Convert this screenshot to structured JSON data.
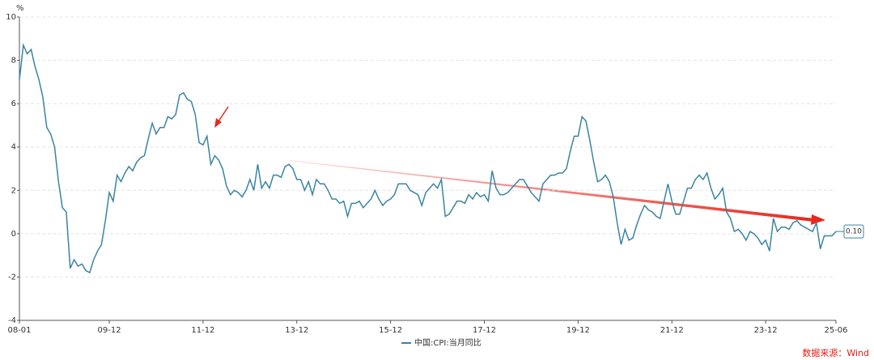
{
  "chart_data": {
    "type": "line",
    "y_unit": "%",
    "categories": [
      "08-01",
      null,
      null,
      null,
      null,
      null,
      null,
      null,
      null,
      null,
      null,
      null,
      null,
      null,
      null,
      null,
      null,
      null,
      null,
      null,
      null,
      null,
      null,
      "09-12",
      null,
      null,
      null,
      null,
      null,
      null,
      null,
      null,
      null,
      null,
      null,
      null,
      null,
      null,
      null,
      null,
      null,
      null,
      null,
      null,
      null,
      null,
      null,
      "11-12",
      null,
      null,
      null,
      null,
      null,
      null,
      null,
      null,
      null,
      null,
      null,
      null,
      null,
      null,
      null,
      null,
      null,
      null,
      null,
      null,
      null,
      null,
      null,
      "13-12",
      null,
      null,
      null,
      null,
      null,
      null,
      null,
      null,
      null,
      null,
      null,
      null,
      null,
      null,
      null,
      null,
      null,
      null,
      null,
      null,
      null,
      null,
      null,
      "15-12",
      null,
      null,
      null,
      null,
      null,
      null,
      null,
      null,
      null,
      null,
      null,
      null,
      null,
      null,
      null,
      null,
      null,
      null,
      null,
      null,
      null,
      null,
      null,
      "17-12",
      null,
      null,
      null,
      null,
      null,
      null,
      null,
      null,
      null,
      null,
      null,
      null,
      null,
      null,
      null,
      null,
      null,
      null,
      null,
      null,
      null,
      null,
      null,
      "19-12",
      null,
      null,
      null,
      null,
      null,
      null,
      null,
      null,
      null,
      null,
      null,
      null,
      null,
      null,
      null,
      null,
      null,
      null,
      null,
      null,
      null,
      null,
      null,
      "21-12",
      null,
      null,
      null,
      null,
      null,
      null,
      null,
      null,
      null,
      null,
      null,
      null,
      null,
      null,
      null,
      null,
      null,
      null,
      null,
      null,
      null,
      null,
      null,
      "23-12",
      null,
      null,
      null,
      null,
      null,
      null,
      null,
      null,
      null,
      null,
      null,
      null,
      null,
      null,
      null,
      null,
      null,
      "25-06"
    ],
    "series": [
      {
        "name": "中国:CPI:当月同比",
        "color": "#3a84a3",
        "values": [
          7.1,
          8.7,
          8.3,
          8.5,
          7.7,
          7.1,
          6.3,
          4.9,
          4.6,
          4.0,
          2.4,
          1.2,
          1.0,
          -1.6,
          -1.2,
          -1.5,
          -1.4,
          -1.7,
          -1.8,
          -1.2,
          -0.8,
          -0.5,
          0.6,
          1.9,
          1.5,
          2.7,
          2.4,
          2.8,
          3.1,
          2.9,
          3.3,
          3.5,
          3.6,
          4.4,
          5.1,
          4.6,
          4.9,
          4.9,
          5.4,
          5.3,
          5.5,
          6.4,
          6.5,
          6.2,
          6.1,
          5.5,
          4.2,
          4.1,
          4.5,
          3.2,
          3.6,
          3.4,
          3.0,
          2.2,
          1.8,
          2.0,
          1.9,
          1.7,
          2.0,
          2.5,
          2.0,
          3.2,
          2.1,
          2.4,
          2.1,
          2.7,
          2.7,
          2.6,
          3.1,
          3.2,
          3.0,
          2.5,
          2.5,
          2.0,
          2.4,
          1.8,
          2.5,
          2.3,
          2.3,
          2.0,
          1.6,
          1.6,
          1.4,
          1.5,
          0.8,
          1.4,
          1.4,
          1.5,
          1.2,
          1.4,
          1.6,
          2.0,
          1.6,
          1.3,
          1.5,
          1.6,
          1.8,
          2.3,
          2.3,
          2.3,
          2.0,
          1.9,
          1.8,
          1.3,
          1.9,
          2.1,
          2.3,
          2.1,
          2.5,
          0.8,
          0.9,
          1.2,
          1.5,
          1.5,
          1.4,
          1.8,
          1.6,
          1.9,
          1.7,
          1.8,
          1.5,
          2.9,
          2.1,
          1.8,
          1.8,
          1.9,
          2.1,
          2.3,
          2.5,
          2.5,
          2.2,
          1.9,
          1.7,
          1.5,
          2.3,
          2.5,
          2.7,
          2.7,
          2.8,
          2.8,
          3.0,
          3.8,
          4.5,
          4.5,
          5.4,
          5.2,
          4.3,
          3.3,
          2.4,
          2.5,
          2.7,
          2.4,
          1.7,
          0.5,
          -0.5,
          0.2,
          -0.3,
          -0.2,
          0.4,
          0.9,
          1.3,
          1.1,
          1.0,
          0.8,
          0.7,
          1.5,
          2.3,
          1.5,
          0.9,
          0.9,
          1.5,
          2.1,
          2.1,
          2.5,
          2.7,
          2.5,
          2.8,
          2.1,
          1.6,
          1.8,
          2.1,
          1.0,
          0.7,
          0.1,
          0.2,
          0.0,
          -0.3,
          0.1,
          0.0,
          -0.2,
          -0.5,
          -0.3,
          -0.8,
          0.7,
          0.1,
          0.3,
          0.3,
          0.2,
          0.5,
          0.6,
          0.4,
          0.3,
          0.2,
          0.1,
          0.5,
          -0.7,
          -0.1,
          -0.1,
          -0.1,
          0.1
        ],
        "value_labels": [
          null,
          null,
          null,
          null,
          null,
          null,
          null,
          null,
          null,
          null,
          null,
          null,
          null,
          null,
          null,
          null,
          null,
          null,
          null,
          null,
          null,
          null,
          null,
          null,
          null,
          null,
          null,
          null,
          null,
          null,
          null,
          null,
          null,
          null,
          null,
          null,
          null,
          null,
          null,
          null,
          null,
          null,
          null,
          null,
          null,
          null,
          null,
          null,
          null,
          null,
          null,
          null,
          null,
          null,
          null,
          null,
          null,
          null,
          null,
          null,
          null,
          null,
          null,
          null,
          null,
          null,
          null,
          null,
          null,
          null,
          null,
          null,
          null,
          null,
          null,
          null,
          null,
          null,
          null,
          null,
          null,
          null,
          null,
          null,
          null,
          null,
          null,
          null,
          null,
          null,
          null,
          null,
          null,
          null,
          null,
          null,
          null,
          null,
          null,
          null,
          null,
          null,
          null,
          null,
          null,
          null,
          null,
          null,
          null,
          null,
          null,
          null,
          null,
          null,
          null,
          null,
          null,
          null,
          null,
          null,
          null,
          null,
          null,
          null,
          null,
          null,
          null,
          null,
          null,
          null,
          null,
          null,
          null,
          null,
          null,
          null,
          null,
          null,
          null,
          null,
          null,
          null,
          null,
          null,
          null,
          null,
          null,
          null,
          null,
          null,
          null,
          null,
          null,
          null,
          null,
          null,
          null,
          null,
          null,
          null,
          null,
          null,
          null,
          null,
          null,
          null,
          null,
          null,
          null,
          null,
          null,
          null,
          null,
          null,
          null,
          null,
          null,
          null,
          null,
          null,
          null,
          null,
          null,
          null,
          null,
          null,
          null,
          null,
          null,
          null,
          null,
          null,
          null,
          null,
          null,
          null,
          null,
          null,
          null,
          null,
          null,
          null,
          null,
          null,
          null,
          null,
          null,
          null,
          null,
          "0.10"
        ]
      }
    ],
    "ylim": [
      -4,
      10
    ],
    "yticks": [
      -4,
      -2,
      0,
      2,
      4,
      6,
      8,
      10
    ],
    "grid": true,
    "legend": "bottom",
    "source": "数据来源：Wind"
  }
}
